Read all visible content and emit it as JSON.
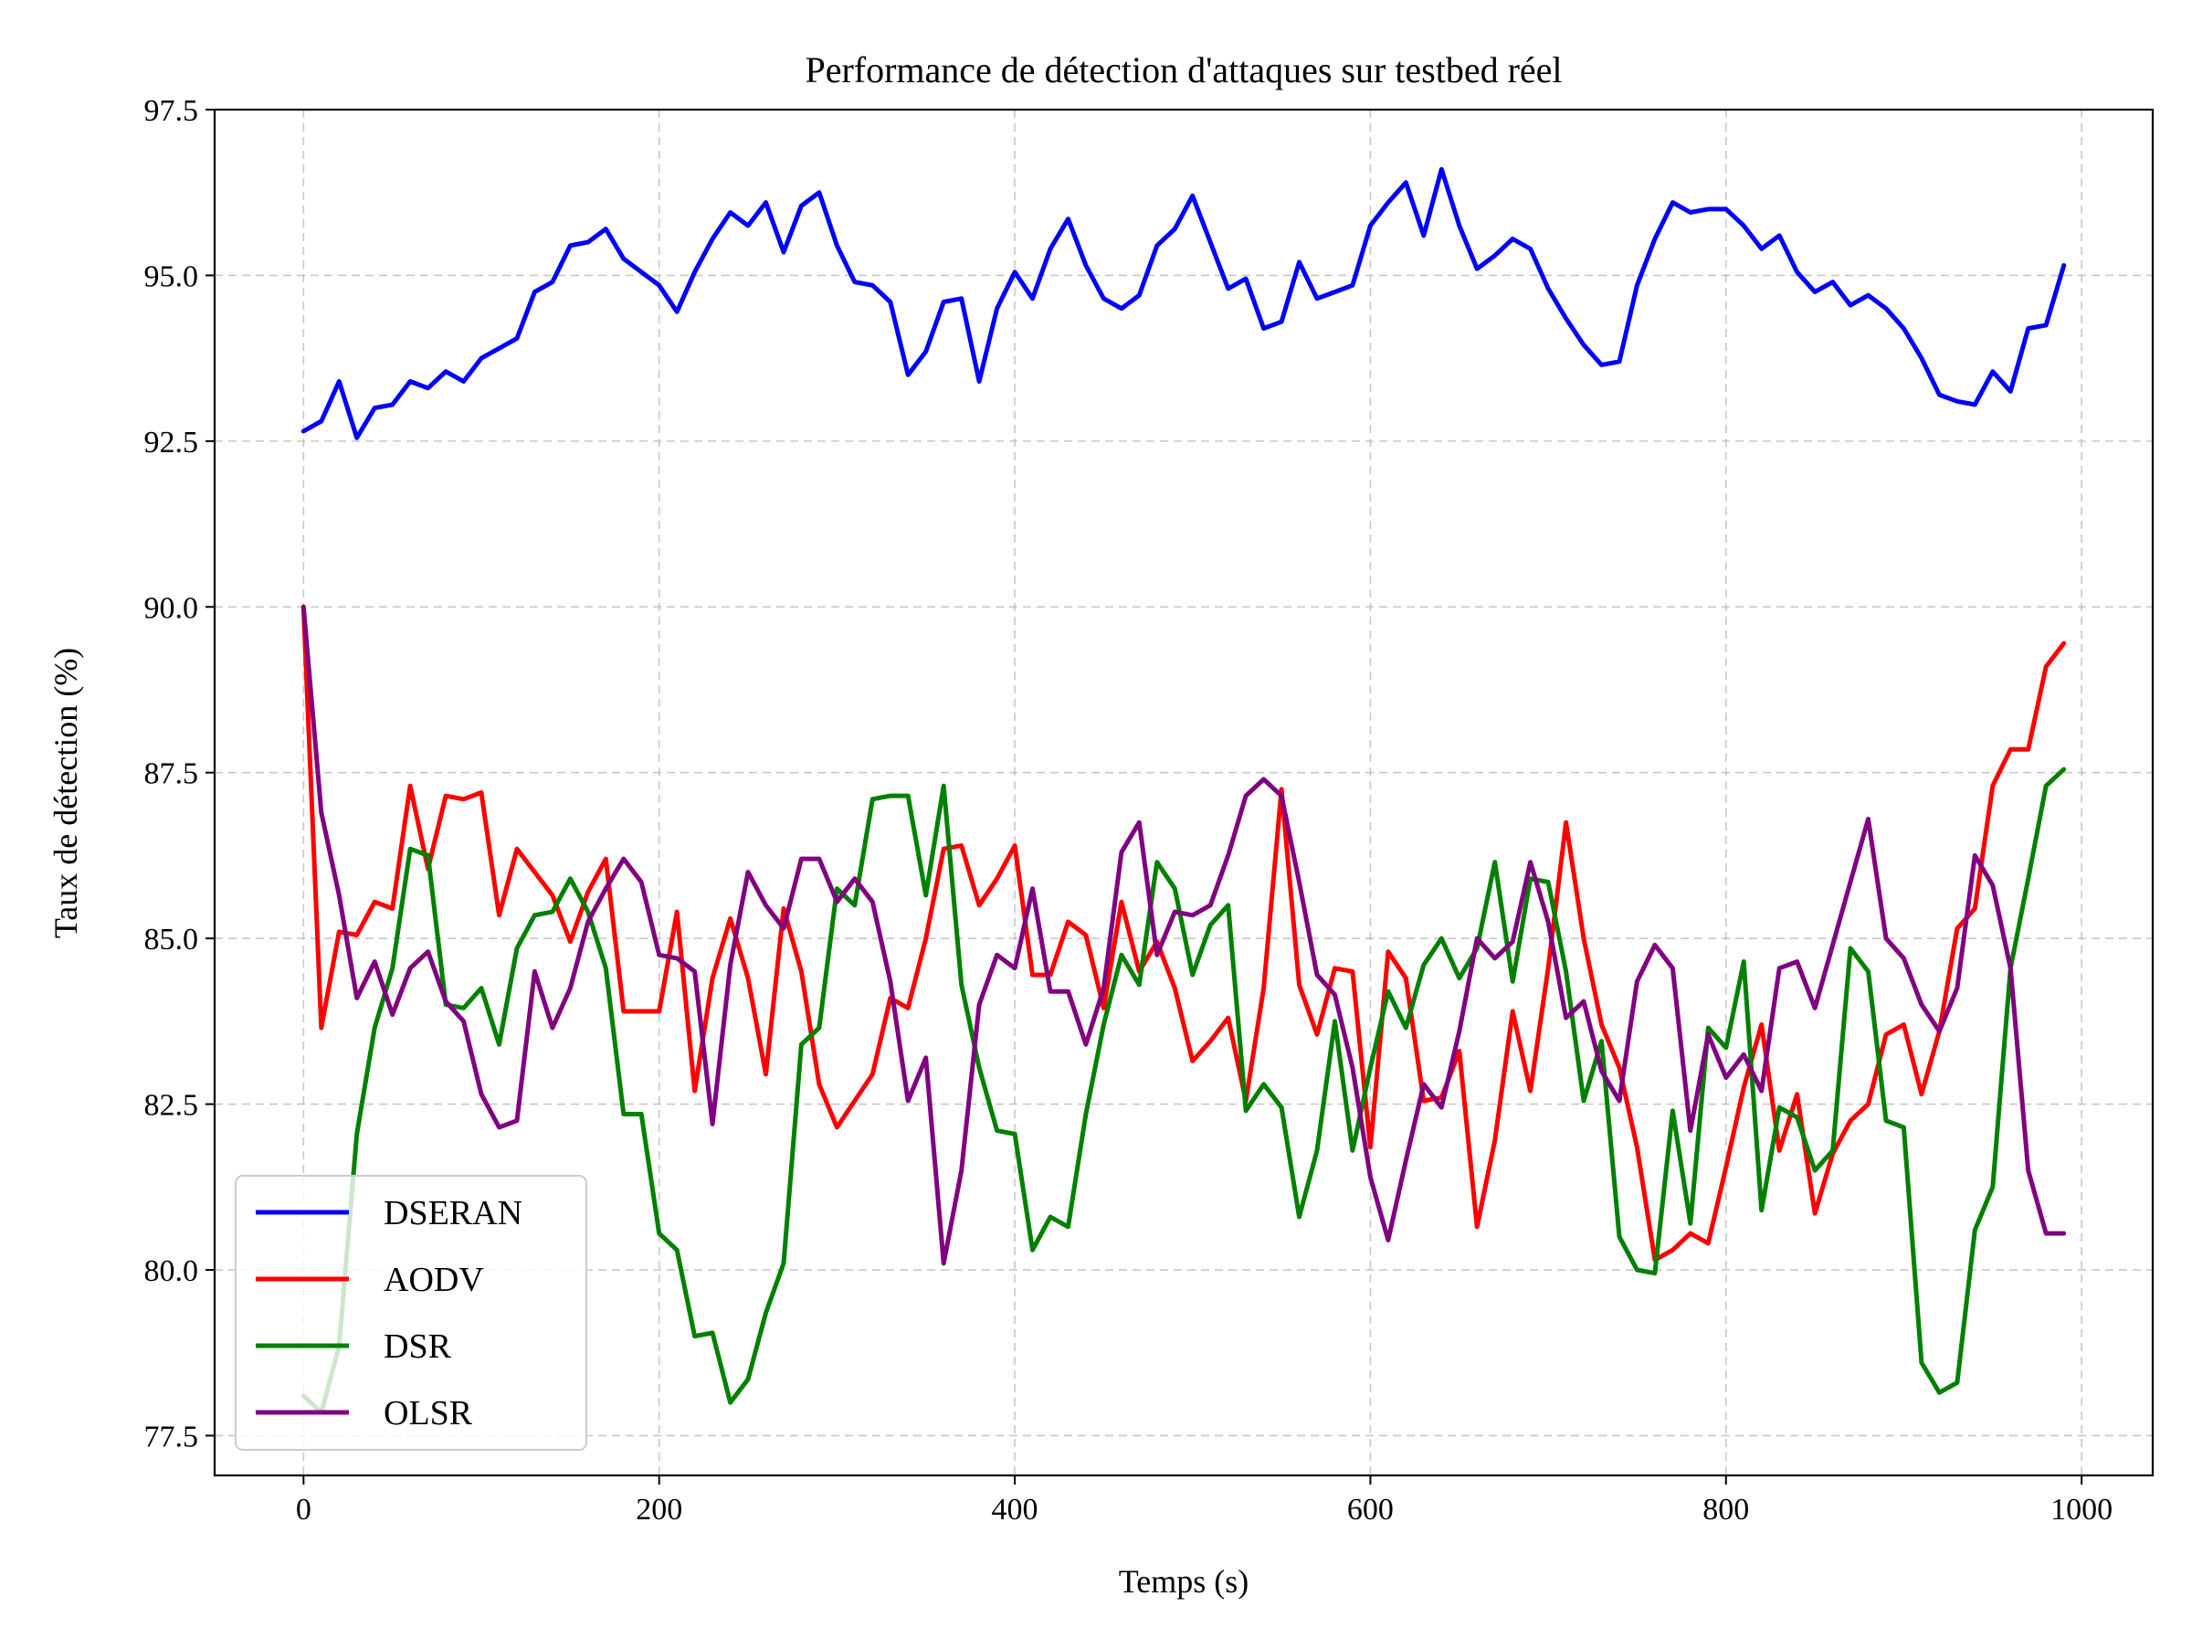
{
  "chart_data": {
    "type": "line",
    "title": "Performance de détection d'attaques sur testbed réel",
    "xlabel": "Temps (s)",
    "ylabel": "Taux de détection (%)",
    "xlim": [
      -50,
      1040
    ],
    "ylim": [
      76.9,
      97.5
    ],
    "xticks": [
      0,
      200,
      400,
      600,
      800,
      1000
    ],
    "xtick_labels": [
      "0",
      "200",
      "400",
      "600",
      "800",
      "1000"
    ],
    "yticks": [
      77.5,
      80.0,
      82.5,
      85.0,
      87.5,
      90.0,
      92.5,
      95.0,
      97.5
    ],
    "ytick_labels": [
      "77.5",
      "80.0",
      "82.5",
      "85.0",
      "87.5",
      "90.0",
      "92.5",
      "95.0",
      "97.5"
    ],
    "grid": true,
    "legend_position": "lower-left",
    "x": [
      0,
      10,
      20,
      30,
      40,
      50,
      60,
      70,
      80,
      90,
      100,
      110,
      120,
      130,
      140,
      150,
      160,
      170,
      180,
      190,
      200,
      210,
      220,
      230,
      240,
      250,
      260,
      270,
      280,
      290,
      300,
      310,
      320,
      330,
      340,
      350,
      360,
      370,
      380,
      390,
      400,
      410,
      420,
      430,
      440,
      450,
      460,
      470,
      480,
      490,
      500,
      510,
      520,
      530,
      540,
      550,
      560,
      570,
      580,
      590,
      600,
      610,
      620,
      630,
      640,
      650,
      660,
      670,
      680,
      690,
      700,
      710,
      720,
      730,
      740,
      750,
      760,
      770,
      780,
      790,
      800,
      810,
      820,
      830,
      840,
      850,
      860,
      870,
      880,
      890,
      900,
      910,
      920,
      930,
      940,
      950,
      960,
      970,
      980,
      990
    ],
    "series": [
      {
        "name": "DSERAN",
        "color": "#0000ff",
        "values": [
          92.65,
          92.8,
          93.4,
          92.55,
          93.0,
          93.05,
          93.4,
          93.3,
          93.55,
          93.4,
          93.75,
          93.9,
          94.05,
          94.75,
          94.9,
          95.45,
          95.5,
          95.7,
          95.25,
          95.05,
          94.85,
          94.45,
          95.05,
          95.55,
          95.95,
          95.75,
          96.1,
          95.35,
          96.05,
          96.25,
          95.45,
          94.9,
          94.85,
          94.6,
          93.5,
          93.85,
          94.6,
          94.65,
          93.4,
          94.5,
          95.05,
          94.65,
          95.4,
          95.85,
          95.15,
          94.65,
          94.5,
          94.7,
          95.45,
          95.7,
          96.2,
          95.5,
          94.8,
          94.95,
          94.2,
          94.3,
          95.2,
          94.65,
          94.75,
          94.85,
          95.75,
          96.1,
          96.4,
          95.6,
          96.6,
          95.75,
          95.1,
          95.3,
          95.55,
          95.4,
          94.8,
          94.35,
          93.95,
          93.65,
          93.7,
          94.85,
          95.55,
          96.1,
          95.95,
          96.0,
          96.0,
          95.75,
          95.4,
          95.6,
          95.05,
          94.75,
          94.9,
          94.55,
          94.7,
          94.5,
          94.2,
          93.75,
          93.2,
          93.1,
          93.05,
          93.55,
          93.25,
          94.2,
          94.25,
          95.15
        ]
      },
      {
        "name": "AODV",
        "color": "#ff0000",
        "values": [
          90.0,
          83.65,
          85.1,
          85.05,
          85.55,
          85.45,
          87.3,
          86.05,
          87.15,
          87.1,
          87.2,
          85.35,
          86.35,
          86.0,
          85.65,
          84.95,
          85.7,
          86.2,
          83.9,
          83.9,
          83.9,
          85.4,
          82.7,
          84.4,
          85.3,
          84.4,
          82.95,
          85.45,
          84.5,
          82.8,
          82.15,
          82.55,
          82.95,
          84.1,
          83.95,
          85.0,
          86.35,
          86.4,
          85.5,
          85.9,
          86.4,
          84.45,
          84.45,
          85.25,
          85.05,
          83.95,
          85.55,
          84.5,
          84.95,
          84.25,
          83.15,
          83.45,
          83.8,
          82.55,
          84.25,
          87.25,
          84.3,
          83.55,
          84.55,
          84.5,
          81.85,
          84.8,
          84.4,
          82.55,
          82.6,
          83.3,
          80.65,
          81.95,
          83.9,
          82.7,
          84.55,
          86.75,
          85.0,
          83.7,
          83.05,
          81.85,
          80.15,
          80.3,
          80.55,
          80.4,
          81.55,
          82.75,
          83.7,
          81.8,
          82.65,
          80.85,
          81.75,
          82.25,
          82.5,
          83.55,
          83.7,
          82.65,
          83.6,
          85.15,
          85.45,
          87.3,
          87.85,
          87.85,
          89.1,
          89.45
        ]
      },
      {
        "name": "DSR",
        "color": "#008000",
        "values": [
          78.1,
          77.85,
          78.85,
          82.05,
          83.65,
          84.55,
          86.35,
          86.25,
          84.0,
          83.95,
          84.25,
          83.4,
          84.85,
          85.35,
          85.4,
          85.9,
          85.4,
          84.55,
          82.35,
          82.35,
          80.55,
          80.3,
          79.0,
          79.05,
          78.0,
          78.35,
          79.35,
          80.1,
          83.4,
          83.65,
          85.75,
          85.5,
          87.1,
          87.15,
          87.15,
          85.65,
          87.3,
          84.3,
          83.05,
          82.1,
          82.05,
          80.3,
          80.8,
          80.65,
          82.35,
          83.7,
          84.75,
          84.3,
          86.15,
          85.75,
          84.45,
          85.2,
          85.5,
          82.4,
          82.8,
          82.45,
          80.8,
          81.8,
          83.75,
          81.8,
          83.05,
          84.2,
          83.65,
          84.6,
          85.0,
          84.4,
          84.85,
          86.15,
          84.35,
          85.9,
          85.85,
          84.5,
          82.55,
          83.45,
          80.5,
          80.0,
          79.95,
          82.4,
          80.7,
          83.65,
          83.35,
          84.65,
          80.9,
          82.45,
          82.3,
          81.5,
          81.8,
          84.85,
          84.5,
          82.25,
          82.15,
          78.6,
          78.15,
          78.3,
          80.6,
          81.25,
          84.55,
          85.9,
          87.3,
          87.55
        ]
      },
      {
        "name": "OLSR",
        "color": "#800080",
        "values": [
          90.0,
          86.9,
          85.65,
          84.1,
          84.65,
          83.85,
          84.55,
          84.8,
          84.05,
          83.75,
          82.65,
          82.15,
          82.25,
          84.5,
          83.65,
          84.25,
          85.25,
          85.75,
          86.2,
          85.85,
          84.75,
          84.7,
          84.5,
          82.2,
          84.6,
          86.0,
          85.5,
          85.15,
          86.2,
          86.2,
          85.55,
          85.9,
          85.55,
          84.35,
          82.55,
          83.2,
          80.1,
          81.5,
          84.0,
          84.75,
          84.55,
          85.75,
          84.2,
          84.2,
          83.4,
          84.25,
          86.3,
          86.75,
          84.75,
          85.4,
          85.35,
          85.5,
          86.25,
          87.15,
          87.4,
          87.15,
          85.85,
          84.45,
          84.15,
          83.05,
          81.4,
          80.45,
          81.65,
          82.8,
          82.45,
          83.6,
          85.0,
          84.7,
          84.95,
          86.15,
          85.25,
          83.8,
          84.05,
          83.0,
          82.55,
          84.35,
          84.9,
          84.55,
          82.1,
          83.55,
          82.9,
          83.25,
          82.7,
          84.55,
          84.65,
          83.95,
          84.9,
          85.85,
          86.8,
          85.0,
          84.7,
          84.0,
          83.6,
          84.25,
          86.25,
          85.8,
          84.55,
          81.5,
          80.55,
          80.55
        ]
      }
    ]
  }
}
